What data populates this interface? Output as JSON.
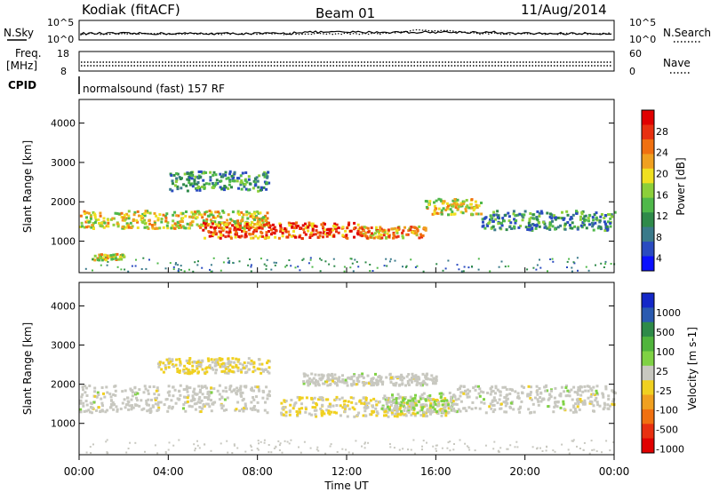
{
  "header": {
    "station": "Kodiak (fitACF)",
    "beam": "Beam 01",
    "date": "11/Aug/2014"
  },
  "noise_panel": {
    "left_label": "N.Sky",
    "right_label": "N.Search",
    "left_ticks": [
      "10^5",
      "10^0"
    ],
    "right_ticks": [
      "10^5",
      "10^0"
    ]
  },
  "freq_panel": {
    "left_label_line1": "Freq.",
    "left_label_line2": "[MHz]",
    "left_ticks": [
      "18",
      "8"
    ],
    "right_label": "Nave",
    "right_ticks": [
      "60",
      "0"
    ]
  },
  "cpid_panel": {
    "label": "CPID",
    "text": "normalsound (fast) 157 RF"
  },
  "power_panel": {
    "ylabel": "Slant Range [km]",
    "yticks": [
      "4000",
      "3000",
      "2000",
      "1000"
    ],
    "colorbar_label": "Power [dB]",
    "colorbar_ticks": [
      "28",
      "24",
      "20",
      "16",
      "12",
      "8",
      "4"
    ],
    "colors": [
      "#0a10ff",
      "#2a4bc0",
      "#3a7a8a",
      "#2f8a4a",
      "#4fb84a",
      "#8ccf3a",
      "#f0e020",
      "#f0a020",
      "#f07010",
      "#e83010",
      "#e00000"
    ]
  },
  "velocity_panel": {
    "ylabel": "Slant Range [km]",
    "yticks": [
      "4000",
      "3000",
      "2000",
      "1000"
    ],
    "colorbar_label": "Velocity [m s-1]",
    "colorbar_ticks": [
      "1000",
      "500",
      "100",
      "25",
      "-25",
      "-100",
      "-500",
      "-1000"
    ],
    "colors": [
      "#1428c8",
      "#2a5ab0",
      "#2e8a48",
      "#50b43c",
      "#7fd244",
      "#c8c8c0",
      "#f0d020",
      "#f0a020",
      "#f07010",
      "#e83010",
      "#e00000"
    ]
  },
  "xaxis": {
    "label": "Time UT",
    "ticks": [
      "00:00",
      "04:00",
      "08:00",
      "12:00",
      "16:00",
      "20:00",
      "00:00"
    ]
  },
  "chart_data": {
    "type": "heatmap",
    "title": "Kodiak (fitACF)   Beam 01   11/Aug/2014",
    "xlabel": "Time UT",
    "ylabel": "Slant Range [km]",
    "xlim": [
      "00:00",
      "24:00"
    ],
    "ylim": [
      200,
      4600
    ],
    "grid": false,
    "series": [
      {
        "name": "Power [dB]",
        "zlim": [
          0,
          32
        ],
        "bands": [
          {
            "t_start": 0.0,
            "t_end": 8.5,
            "range_low": 1350,
            "range_high": 1800,
            "value": 20
          },
          {
            "t_start": 5.5,
            "t_end": 12.5,
            "range_low": 1100,
            "range_high": 1500,
            "value": 28
          },
          {
            "t_start": 12.5,
            "t_end": 15.5,
            "range_low": 1100,
            "range_high": 1400,
            "value": 24
          },
          {
            "t_start": 15.5,
            "t_end": 18.0,
            "range_low": 1700,
            "range_high": 2100,
            "value": 20
          },
          {
            "t_start": 18.0,
            "t_end": 24.0,
            "range_low": 1300,
            "range_high": 1800,
            "value": 12
          },
          {
            "t_start": 4.0,
            "t_end": 8.5,
            "range_low": 2300,
            "range_high": 2800,
            "value": 12
          },
          {
            "t_start": 0.5,
            "t_end": 2.0,
            "range_low": 550,
            "range_high": 700,
            "value": 20
          }
        ]
      },
      {
        "name": "Velocity [m s-1]",
        "zlim": [
          -1000,
          1000
        ],
        "bands": [
          {
            "t_start": 0.0,
            "t_end": 8.5,
            "range_low": 1300,
            "range_high": 2000,
            "value": 0
          },
          {
            "t_start": 9.0,
            "t_end": 16.5,
            "range_low": 1200,
            "range_high": 1700,
            "value": -100
          },
          {
            "t_start": 13.5,
            "t_end": 16.8,
            "range_low": 1300,
            "range_high": 1800,
            "value": 100
          },
          {
            "t_start": 16.5,
            "t_end": 24.0,
            "range_low": 1300,
            "range_high": 2000,
            "value": 0
          },
          {
            "t_start": 3.5,
            "t_end": 8.5,
            "range_low": 2300,
            "range_high": 2700,
            "value": -100
          },
          {
            "t_start": 10.0,
            "t_end": 16.0,
            "range_low": 2000,
            "range_high": 2300,
            "value": 0
          }
        ]
      }
    ]
  }
}
